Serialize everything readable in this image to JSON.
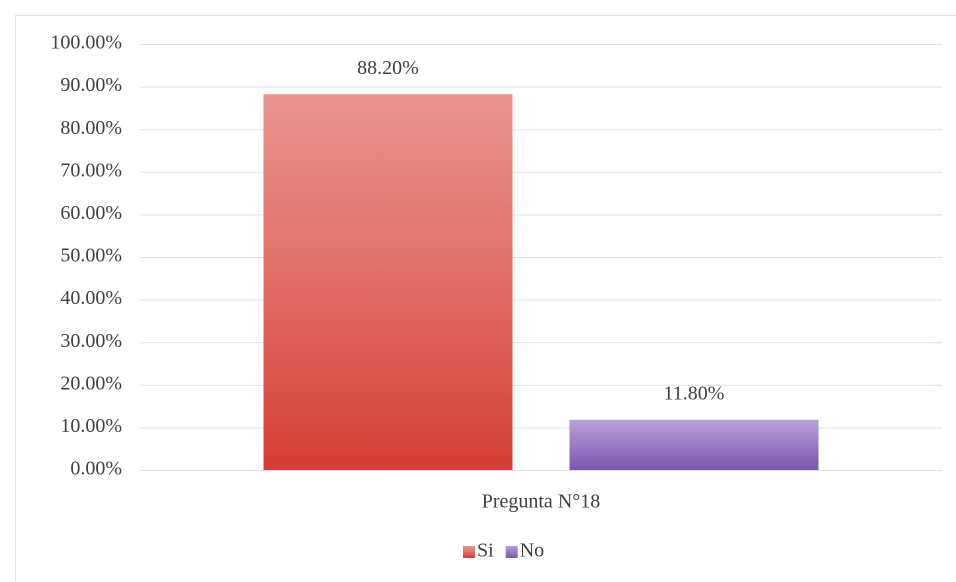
{
  "chart_data": {
    "type": "bar",
    "categories": [
      "Pregunta N°18"
    ],
    "series": [
      {
        "name": "Si",
        "color": "#d63c35",
        "values": [
          88.2
        ],
        "value_labels": [
          "88.20%"
        ]
      },
      {
        "name": "No",
        "color": "#7d55b3",
        "values": [
          11.8
        ],
        "value_labels": [
          "11.80%"
        ]
      }
    ],
    "ylim": [
      0,
      100
    ],
    "yticks": [
      {
        "value": 0,
        "label": "0.00%"
      },
      {
        "value": 10,
        "label": "10.00%"
      },
      {
        "value": 20,
        "label": "20.00%"
      },
      {
        "value": 30,
        "label": "30.00%"
      },
      {
        "value": 40,
        "label": "40.00%"
      },
      {
        "value": 50,
        "label": "50.00%"
      },
      {
        "value": 60,
        "label": "60.00%"
      },
      {
        "value": 70,
        "label": "70.00%"
      },
      {
        "value": 80,
        "label": "80.00%"
      },
      {
        "value": 90,
        "label": "90.00%"
      },
      {
        "value": 100,
        "label": "100.00%"
      }
    ],
    "grid": true,
    "legend": "bottom"
  }
}
